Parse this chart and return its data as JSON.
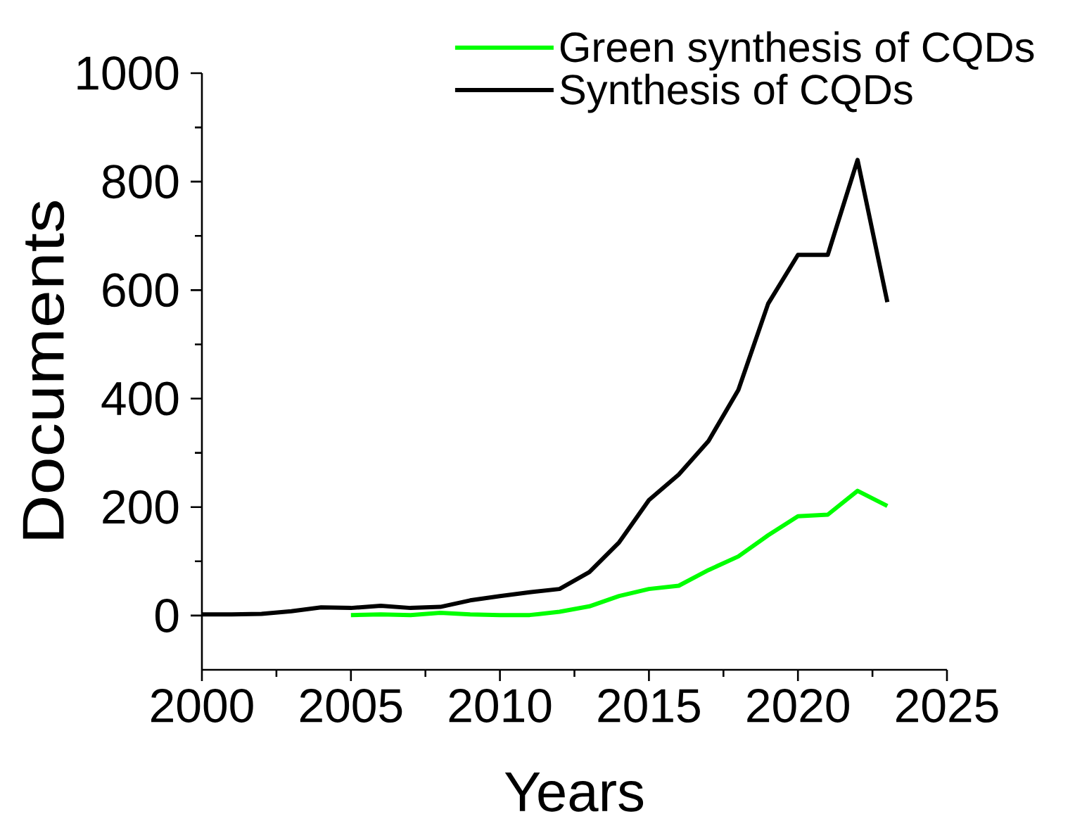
{
  "chart_data": {
    "type": "line",
    "xlabel": "Years",
    "ylabel": "Documents",
    "x": [
      2000,
      2001,
      2002,
      2003,
      2004,
      2005,
      2006,
      2007,
      2008,
      2009,
      2010,
      2011,
      2012,
      2013,
      2014,
      2015,
      2016,
      2017,
      2018,
      2019,
      2020,
      2021,
      2022,
      2023
    ],
    "series": [
      {
        "name": "Green synthesis of CQDs",
        "color": "#00ff00",
        "x": [
          2005,
          2006,
          2007,
          2008,
          2009,
          2010,
          2011,
          2012,
          2013,
          2014,
          2015,
          2016,
          2017,
          2018,
          2019,
          2020,
          2021,
          2022,
          2023
        ],
        "values": [
          1,
          2,
          1,
          5,
          2,
          1,
          1,
          7,
          17,
          36,
          49,
          55,
          84,
          109,
          148,
          183,
          186,
          230,
          202
        ]
      },
      {
        "name": "Synthesis of CQDs",
        "color": "#000000",
        "values": [
          2,
          2,
          3,
          8,
          15,
          14,
          18,
          14,
          16,
          28,
          36,
          43,
          49,
          80,
          135,
          213,
          260,
          322,
          416,
          575,
          665,
          665,
          840,
          578
        ]
      }
    ],
    "xlim": [
      2000,
      2025
    ],
    "xticks": [
      2000,
      {
        "value": 2002.5,
        "label": null
      },
      2005,
      {
        "value": 2007.5,
        "label": null
      },
      2010,
      {
        "value": 2012.5,
        "label": null
      },
      2015,
      {
        "value": 2017.5,
        "label": null
      },
      2020,
      {
        "value": 2022.5,
        "label": null
      },
      2025
    ],
    "ylim": [
      -100,
      1000
    ],
    "yticks": [
      0,
      {
        "value": 100,
        "label": null
      },
      200,
      {
        "value": 300,
        "label": null
      },
      400,
      {
        "value": 500,
        "label": null
      },
      600,
      {
        "value": 700,
        "label": null
      },
      800,
      {
        "value": 900,
        "label": null
      },
      1000
    ],
    "legend": "top right",
    "line_style": "solid"
  }
}
